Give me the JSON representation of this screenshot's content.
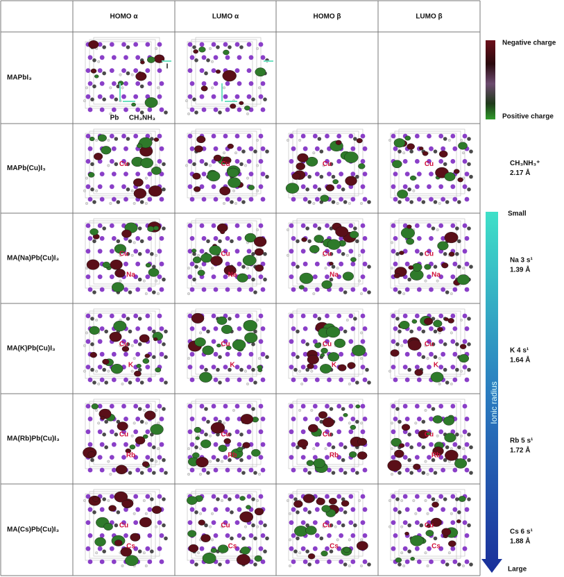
{
  "table": {
    "header": [
      "HOMO α",
      "LUMO α",
      "HOMO β",
      "LUMO β"
    ],
    "rows": [
      {
        "label": "MAPbI₃",
        "cells": [
          {
            "labels": [
              "Pb",
              "CH₃NH₃",
              "I"
            ]
          },
          {
            "labels": []
          },
          null,
          null
        ]
      },
      {
        "label": "MAPb(Cu)I₃",
        "cells": [
          {
            "labels": [
              "Cu"
            ]
          },
          {
            "labels": [
              "Cu"
            ]
          },
          {
            "labels": [
              "Cu"
            ]
          },
          {
            "labels": [
              "Cu"
            ]
          }
        ]
      },
      {
        "label": "MA(Na)Pb(Cu)I₃",
        "cells": [
          {
            "labels": [
              "Cu",
              "Na"
            ]
          },
          {
            "labels": [
              "Cu",
              "Na"
            ]
          },
          {
            "labels": [
              "Cu",
              "Na"
            ]
          },
          {
            "labels": [
              "Cu",
              "Na"
            ]
          }
        ]
      },
      {
        "label": "MA(K)Pb(Cu)I₃",
        "cells": [
          {
            "labels": [
              "Cu",
              "K"
            ]
          },
          {
            "labels": [
              "Cu",
              "K"
            ]
          },
          {
            "labels": [
              "Cu",
              "K"
            ]
          },
          {
            "labels": [
              "Cu",
              "K"
            ]
          }
        ]
      },
      {
        "label": "MA(Rb)Pb(Cu)I₃",
        "cells": [
          {
            "labels": [
              "Cu",
              "Rb"
            ]
          },
          {
            "labels": [
              "Cu",
              "Rb"
            ]
          },
          {
            "labels": [
              "Cu",
              "Rb"
            ]
          },
          {
            "labels": [
              "Cu",
              "Rb"
            ]
          }
        ]
      },
      {
        "label": "MA(Cs)Pb(Cu)I₃",
        "cells": [
          {
            "labels": [
              "Cu",
              "Cs"
            ]
          },
          {
            "labels": [
              "Cu",
              "Cs"
            ]
          },
          {
            "labels": [
              "Cu",
              "Cs"
            ]
          },
          {
            "labels": [
              "Cu",
              "Cs"
            ]
          }
        ]
      }
    ]
  },
  "charge_legend": {
    "negative": "Negative charge",
    "positive": "Positive charge"
  },
  "radius_scale": {
    "small": "Small",
    "large": "Large",
    "axis": "Ionic radius"
  },
  "ions": [
    null,
    {
      "name": "CH₃NH₃⁺",
      "radius": "2.17 Å"
    },
    {
      "name": "Na 3 s¹",
      "radius": "1.39 Å"
    },
    {
      "name": "K 4 s¹",
      "radius": "1.64 Å"
    },
    {
      "name": "Rb 5 s¹",
      "radius": "1.72 Å"
    },
    {
      "name": "Cs 6 s¹",
      "radius": "1.88 Å"
    }
  ]
}
